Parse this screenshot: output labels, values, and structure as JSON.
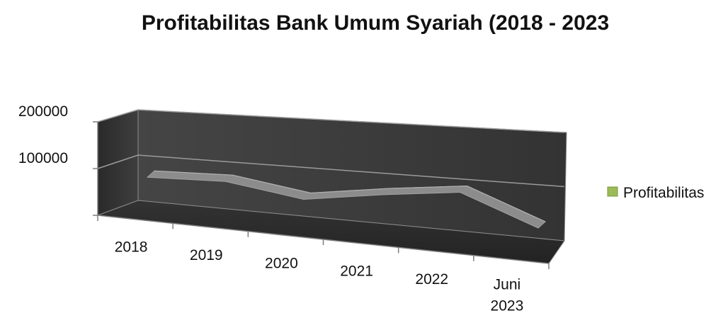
{
  "chart_data": {
    "type": "line",
    "title": "Profitabilitas Bank Umum Syariah (2018 - 2023",
    "xlabel": "",
    "ylabel": "",
    "categories": [
      "2018",
      "2019",
      "2020",
      "2021",
      "2022",
      "Juni 2023"
    ],
    "series": [
      {
        "name": "Profitabilitas",
        "values": [
          39000,
          45000,
          20000,
          45000,
          64000,
          5000
        ]
      }
    ],
    "ylim": [
      0,
      200000
    ],
    "yticks": [
      "100000",
      "200000"
    ],
    "grid": true,
    "legend": "right",
    "style": "3d",
    "colors": {
      "wall": "#3a3a3a",
      "floor": "#2b2b2b",
      "ribbon": "#8c8c8c",
      "legend_marker": "#9bbb59"
    }
  }
}
